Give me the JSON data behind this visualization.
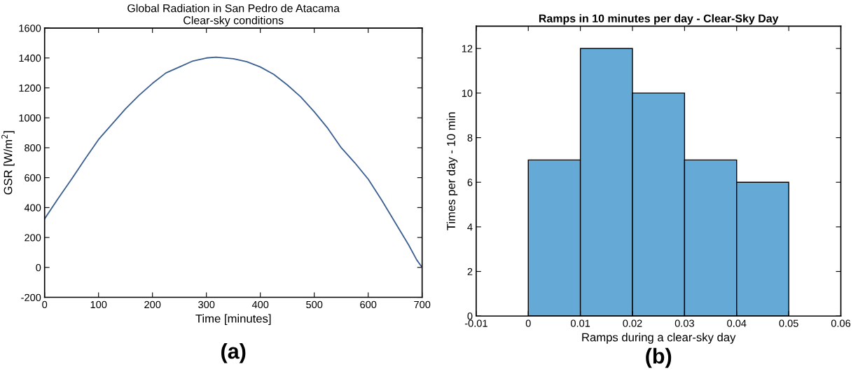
{
  "chart_data": [
    {
      "type": "line",
      "title": "Global Radiation in San Pedro de Atacama\nClear-sky conditions",
      "xlabel": "Time [minutes]",
      "ylabel": "GSR [W/m$^{2}$]",
      "x": [
        0,
        25,
        50,
        75,
        100,
        150,
        175,
        200,
        225,
        250,
        275,
        300,
        318,
        350,
        375,
        400,
        425,
        450,
        475,
        500,
        525,
        550,
        575,
        600,
        625,
        650,
        675,
        690,
        700
      ],
      "series": [
        {
          "color": "#3b5f91",
          "values": [
            325,
            460,
            590,
            725,
            855,
            1060,
            1150,
            1230,
            1300,
            1340,
            1380,
            1400,
            1405,
            1395,
            1375,
            1340,
            1290,
            1220,
            1140,
            1040,
            930,
            800,
            700,
            590,
            450,
            300,
            150,
            50,
            0
          ]
        }
      ],
      "xlim": [
        0,
        700
      ],
      "ylim": [
        -200,
        1600
      ],
      "xticks": [
        0,
        100,
        200,
        300,
        400,
        500,
        600,
        700
      ],
      "yticks": [
        -200,
        0,
        200,
        400,
        600,
        800,
        1000,
        1200,
        1400,
        1600
      ],
      "grid": false,
      "annotations": [
        "(a)"
      ]
    },
    {
      "type": "histogram",
      "title": "Ramps in 10 minutes per day - Clear-Sky Day",
      "xlabel": "Ramps during a clear-sky day",
      "ylabel": "Times per day - 10 min",
      "bins": [
        0,
        0.01,
        0.02,
        0.03,
        0.04,
        0.05
      ],
      "values": [
        7,
        12,
        10,
        7,
        6
      ],
      "color": "#65a9d7",
      "xlim": [
        -0.01,
        0.06
      ],
      "ylim": [
        0,
        13
      ],
      "xticks": [
        -0.01,
        0,
        0.01,
        0.02,
        0.03,
        0.04,
        0.05,
        0.06
      ],
      "yticks": [
        0,
        2,
        4,
        6,
        8,
        10,
        12
      ],
      "grid": false,
      "annotations": [
        "(b)"
      ]
    }
  ]
}
